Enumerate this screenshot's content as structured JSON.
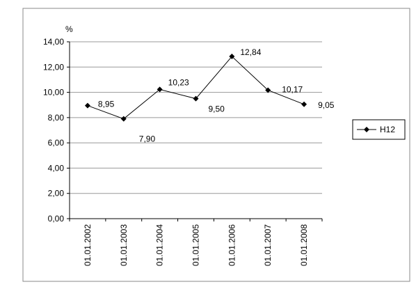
{
  "chart_data": {
    "type": "line",
    "y_label": "%",
    "categories": [
      "01.01.2002",
      "01.01.2003",
      "01.01.2004",
      "01.01.2005",
      "01.01.2006",
      "01.01.2007",
      "01.01.2008"
    ],
    "series": [
      {
        "name": "H12",
        "color": "#000000",
        "values": [
          8.95,
          7.9,
          10.23,
          9.5,
          12.84,
          10.17,
          9.05
        ],
        "value_labels": [
          "8,95",
          "7,90",
          "10,23",
          "9,50",
          "12,84",
          "10,17",
          "9,05"
        ]
      }
    ],
    "ylim": [
      0,
      14
    ],
    "yticks": [
      {
        "value": 0,
        "label": "0,00"
      },
      {
        "value": 2,
        "label": "2,00"
      },
      {
        "value": 4,
        "label": "4,00"
      },
      {
        "value": 6,
        "label": "6,00"
      },
      {
        "value": 8,
        "label": "8,00"
      },
      {
        "value": 10,
        "label": "10,00"
      },
      {
        "value": 12,
        "label": "12,00"
      },
      {
        "value": 14,
        "label": "14,00"
      }
    ],
    "grid": true,
    "legend": "right"
  }
}
